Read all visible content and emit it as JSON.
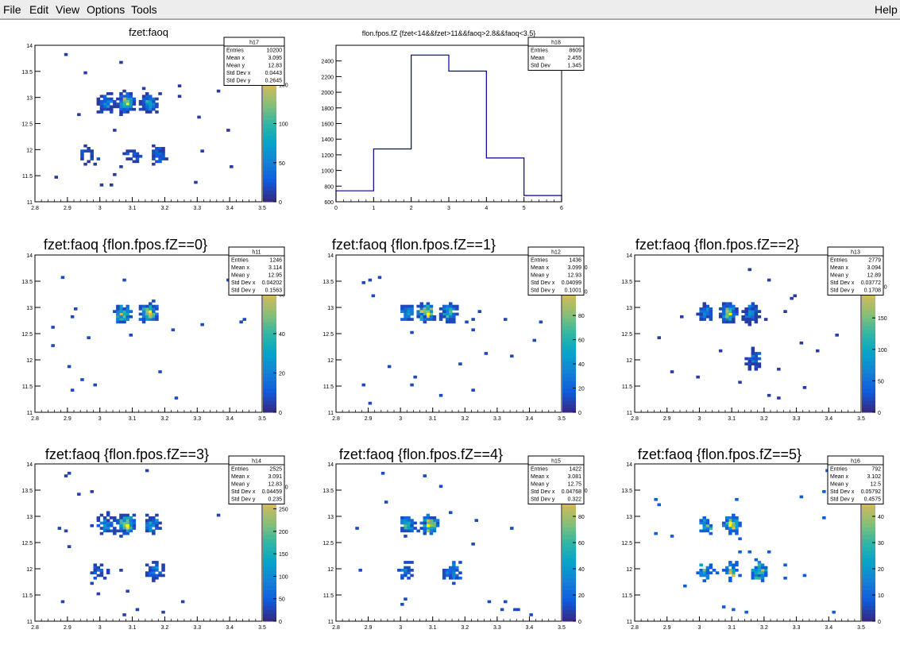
{
  "window": {
    "menu": {
      "file": "File",
      "edit": "Edit",
      "view": "View",
      "options": "Options",
      "tools": "Tools",
      "help": "Help"
    }
  },
  "colors": {
    "background": "#ffffff",
    "histogram_line": "#000099",
    "menubar": "#ededed",
    "palette": [
      "#352a87",
      "#0f5cdd",
      "#1481d6",
      "#06a4ca",
      "#2eb7a4",
      "#87bf77",
      "#d1bb59",
      "#fec832",
      "#f9fb0e"
    ]
  },
  "chart_data": [
    {
      "type": "heatmap",
      "pad": "pad-h17",
      "title": "fzet:faoq",
      "stats": [
        {
          "label": "Entries",
          "value": "10200"
        },
        {
          "label": "Mean x",
          "value": "3.095"
        },
        {
          "label": "Mean y",
          "value": "12.83"
        },
        {
          "label": "Std Dev x",
          "value": "0.0443"
        },
        {
          "label": "Std Dev y",
          "value": "0.2645"
        }
      ],
      "stats_title": "h17",
      "xlim": [
        2.8,
        3.5
      ],
      "ylim": [
        11,
        14
      ],
      "xticks": [
        "2.8",
        "2.9",
        "3",
        "3.1",
        "3.2",
        "3.3",
        "3.4",
        "3.5"
      ],
      "yticks": [
        "11",
        "11.5",
        "12",
        "12.5",
        "13",
        "13.5",
        "14"
      ],
      "zlim": [
        0,
        200
      ],
      "zticks": [
        "0",
        "50",
        "100",
        "150"
      ],
      "clusters": [
        {
          "x": 3.02,
          "y": 12.9,
          "w": 10
        },
        {
          "x": 3.08,
          "y": 12.9,
          "w": 26
        },
        {
          "x": 3.15,
          "y": 12.9,
          "w": 14
        },
        {
          "x": 2.97,
          "y": 11.9,
          "w": 3
        },
        {
          "x": 3.1,
          "y": 11.9,
          "w": 3
        },
        {
          "x": 3.18,
          "y": 11.9,
          "w": 6
        }
      ]
    },
    {
      "type": "bar",
      "pad": "pad-h18",
      "title": "flon.fpos.fZ {fzet<14&&fzet>11&&faoq>2.8&&faoq<3.5}",
      "stats": [
        {
          "label": "Entries",
          "value": "8609"
        },
        {
          "label": "Mean",
          "value": "2.455"
        },
        {
          "label": "Std Dev",
          "value": "1.345"
        }
      ],
      "stats_title": "h18",
      "categories": [
        "0",
        "1",
        "2",
        "3",
        "4",
        "5"
      ],
      "values": [
        740,
        1275,
        2475,
        2270,
        1160,
        680
      ],
      "xlim": [
        0,
        6
      ],
      "ylim": [
        600,
        2600
      ],
      "xticks": [
        "0",
        "1",
        "2",
        "3",
        "4",
        "5",
        "6"
      ],
      "yticks": [
        "600",
        "800",
        "1000",
        "1200",
        "1400",
        "1600",
        "1800",
        "2000",
        "2200",
        "2400"
      ]
    },
    {
      "type": "heatmap",
      "pad": "pad-h11",
      "title": "fzet:faoq {flon.fpos.fZ==0}",
      "stats": [
        {
          "label": "Entries",
          "value": "1246"
        },
        {
          "label": "Mean x",
          "value": "3.114"
        },
        {
          "label": "Mean y",
          "value": "12.95"
        },
        {
          "label": "Std Dev x",
          "value": "0.04202"
        },
        {
          "label": "Std Dev y",
          "value": "0.1563"
        }
      ],
      "stats_title": "h11",
      "xlim": [
        2.8,
        3.5
      ],
      "ylim": [
        11,
        14
      ],
      "xticks": [
        "2.8",
        "2.9",
        "3",
        "3.1",
        "3.2",
        "3.3",
        "3.4",
        "3.5"
      ],
      "yticks": [
        "11",
        "11.5",
        "12",
        "12.5",
        "13",
        "13.5",
        "14"
      ],
      "zlim": [
        0,
        80
      ],
      "zticks": [
        "0",
        "20",
        "40",
        "60"
      ],
      "clusters": [
        {
          "x": 3.07,
          "y": 12.9,
          "w": 12
        },
        {
          "x": 3.15,
          "y": 12.9,
          "w": 16
        }
      ]
    },
    {
      "type": "heatmap",
      "pad": "pad-h12",
      "title": "fzet:faoq {flon.fpos.fZ==1}",
      "stats": [
        {
          "label": "Entries",
          "value": "1436"
        },
        {
          "label": "Mean x",
          "value": "3.099"
        },
        {
          "label": "Mean y",
          "value": "12.93"
        },
        {
          "label": "Std Dev x",
          "value": "0.04099"
        },
        {
          "label": "Std Dev y",
          "value": "0.1001"
        }
      ],
      "stats_title": "h12",
      "xlim": [
        2.8,
        3.5
      ],
      "ylim": [
        11,
        14
      ],
      "xticks": [
        "2.8",
        "2.9",
        "3",
        "3.1",
        "3.2",
        "3.3",
        "3.4",
        "3.5"
      ],
      "yticks": [
        "11",
        "11.5",
        "12",
        "12.5",
        "13",
        "13.5",
        "14"
      ],
      "zlim": [
        0,
        130
      ],
      "zticks": [
        "0",
        "20",
        "40",
        "60",
        "80",
        "100",
        "120"
      ],
      "clusters": [
        {
          "x": 3.02,
          "y": 12.9,
          "w": 6
        },
        {
          "x": 3.08,
          "y": 12.9,
          "w": 18
        },
        {
          "x": 3.15,
          "y": 12.9,
          "w": 10
        }
      ]
    },
    {
      "type": "heatmap",
      "pad": "pad-h13",
      "title": "fzet:faoq {flon.fpos.fZ==2}",
      "stats": [
        {
          "label": "Entries",
          "value": "2779"
        },
        {
          "label": "Mean x",
          "value": "3.094"
        },
        {
          "label": "Mean y",
          "value": "12.89"
        },
        {
          "label": "Std Dev x",
          "value": "0.03772"
        },
        {
          "label": "Std Dev y",
          "value": "0.1708"
        }
      ],
      "stats_title": "h13",
      "xlim": [
        2.8,
        3.5
      ],
      "ylim": [
        11,
        14
      ],
      "xticks": [
        "2.8",
        "2.9",
        "3",
        "3.1",
        "3.2",
        "3.3",
        "3.4",
        "3.5"
      ],
      "yticks": [
        "11",
        "11.5",
        "12",
        "12.5",
        "13",
        "13.5",
        "14"
      ],
      "zlim": [
        0,
        250
      ],
      "zticks": [
        "0",
        "50",
        "100",
        "150",
        "200"
      ],
      "clusters": [
        {
          "x": 3.02,
          "y": 12.9,
          "w": 8
        },
        {
          "x": 3.09,
          "y": 12.9,
          "w": 24
        },
        {
          "x": 3.16,
          "y": 12.9,
          "w": 10
        },
        {
          "x": 3.17,
          "y": 12.0,
          "w": 6
        }
      ]
    },
    {
      "type": "heatmap",
      "pad": "pad-h14",
      "title": "fzet:faoq {flon.fpos.fZ==3}",
      "stats": [
        {
          "label": "Entries",
          "value": "2525"
        },
        {
          "label": "Mean x",
          "value": "3.091"
        },
        {
          "label": "Mean y",
          "value": "12.83"
        },
        {
          "label": "Std Dev x",
          "value": "0.04459"
        },
        {
          "label": "Std Dev y",
          "value": "0.235"
        }
      ],
      "stats_title": "h14",
      "xlim": [
        2.8,
        3.5
      ],
      "ylim": [
        11,
        14
      ],
      "xticks": [
        "2.8",
        "2.9",
        "3",
        "3.1",
        "3.2",
        "3.3",
        "3.4",
        "3.5"
      ],
      "yticks": [
        "11",
        "11.5",
        "12",
        "12.5",
        "13",
        "13.5",
        "14"
      ],
      "zlim": [
        0,
        350
      ],
      "zticks": [
        "0",
        "50",
        "100",
        "150",
        "200",
        "250",
        "300"
      ],
      "clusters": [
        {
          "x": 3.02,
          "y": 12.85,
          "w": 8
        },
        {
          "x": 3.08,
          "y": 12.85,
          "w": 24
        },
        {
          "x": 3.16,
          "y": 12.85,
          "w": 8
        },
        {
          "x": 3.17,
          "y": 11.95,
          "w": 6
        },
        {
          "x": 3.0,
          "y": 11.95,
          "w": 3
        }
      ]
    },
    {
      "type": "heatmap",
      "pad": "pad-h15",
      "title": "fzet:faoq {flon.fpos.fZ==4}",
      "stats": [
        {
          "label": "Entries",
          "value": "1422"
        },
        {
          "label": "Mean x",
          "value": "3.081"
        },
        {
          "label": "Mean y",
          "value": "12.75"
        },
        {
          "label": "Std Dev x",
          "value": "0.04768"
        },
        {
          "label": "Std Dev y",
          "value": "0.322"
        }
      ],
      "stats_title": "h15",
      "xlim": [
        2.8,
        3.5
      ],
      "ylim": [
        11,
        14
      ],
      "xticks": [
        "2.8",
        "2.9",
        "3",
        "3.1",
        "3.2",
        "3.3",
        "3.4",
        "3.5"
      ],
      "yticks": [
        "11",
        "11.5",
        "12",
        "12.5",
        "13",
        "13.5",
        "14"
      ],
      "zlim": [
        0,
        120
      ],
      "zticks": [
        "0",
        "20",
        "40",
        "60",
        "80",
        "100"
      ],
      "clusters": [
        {
          "x": 3.02,
          "y": 12.85,
          "w": 8
        },
        {
          "x": 3.09,
          "y": 12.85,
          "w": 16
        },
        {
          "x": 3.16,
          "y": 11.95,
          "w": 6
        },
        {
          "x": 3.02,
          "y": 11.95,
          "w": 3
        }
      ]
    },
    {
      "type": "heatmap",
      "pad": "pad-h16",
      "title": "fzet:faoq {flon.fpos.fZ==5}",
      "stats": [
        {
          "label": "Entries",
          "value": "792"
        },
        {
          "label": "Mean x",
          "value": "3.102"
        },
        {
          "label": "Mean y",
          "value": "12.5"
        },
        {
          "label": "Std Dev x",
          "value": "0.05792"
        },
        {
          "label": "Std Dev y",
          "value": "0.4575"
        }
      ],
      "stats_title": "h16",
      "xlim": [
        2.8,
        3.5
      ],
      "ylim": [
        11,
        14
      ],
      "xticks": [
        "2.8",
        "2.9",
        "3",
        "3.1",
        "3.2",
        "3.3",
        "3.4",
        "3.5"
      ],
      "yticks": [
        "11",
        "11.5",
        "12",
        "12.5",
        "13",
        "13.5",
        "14"
      ],
      "zlim": [
        0,
        60
      ],
      "zticks": [
        "0",
        "10",
        "20",
        "30",
        "40",
        "50"
      ],
      "clusters": [
        {
          "x": 3.02,
          "y": 12.85,
          "w": 4
        },
        {
          "x": 3.1,
          "y": 12.85,
          "w": 10
        },
        {
          "x": 3.1,
          "y": 11.95,
          "w": 5
        },
        {
          "x": 3.19,
          "y": 11.95,
          "w": 8
        },
        {
          "x": 3.02,
          "y": 11.95,
          "w": 4
        }
      ]
    }
  ]
}
